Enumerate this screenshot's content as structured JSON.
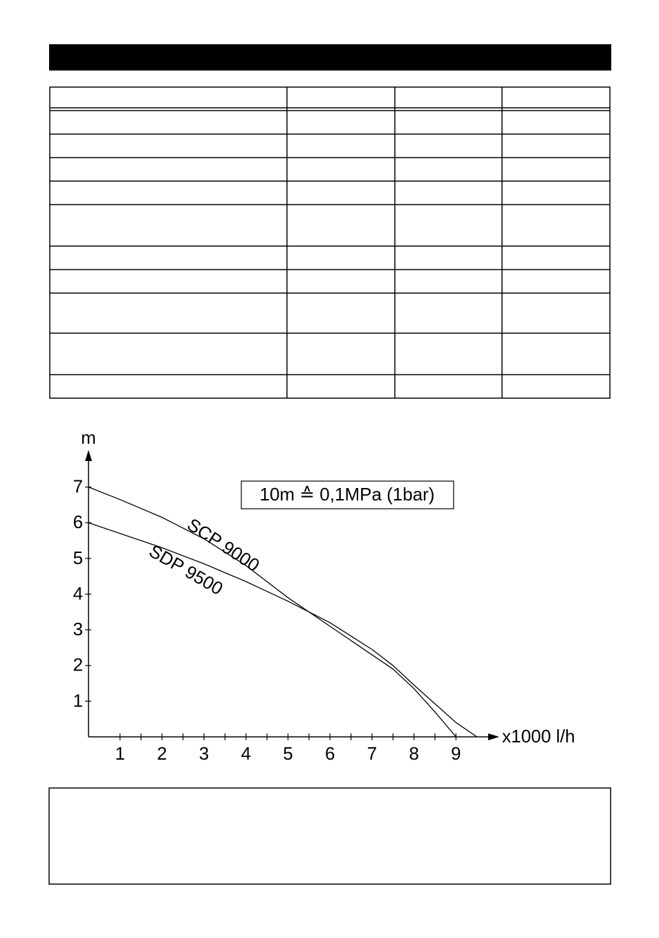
{
  "chart_data": {
    "type": "line",
    "y_label": "m",
    "x_label": "x1000 l/h",
    "annotation": "10m ≙ 0,1MPa (1bar)",
    "xlim": [
      0.25,
      9.8
    ],
    "ylim": [
      0,
      8
    ],
    "xticks": [
      1,
      2,
      3,
      4,
      5,
      6,
      7,
      8,
      9
    ],
    "x_minor_ticks": [
      1.5,
      2.5,
      3.5,
      4.5,
      5.5,
      6.5,
      7.5,
      8.5
    ],
    "yticks": [
      1,
      2,
      3,
      4,
      5,
      6,
      7
    ],
    "grid": false,
    "series": [
      {
        "name": "SCP 9000",
        "color": "#000000",
        "x": [
          0.25,
          1,
          2,
          3,
          4,
          5,
          6,
          7,
          7.5,
          8,
          8.5,
          9
        ],
        "values": [
          7,
          6.65,
          6.15,
          5.55,
          4.8,
          3.9,
          3.1,
          2.3,
          1.9,
          1.35,
          0.7,
          0
        ]
      },
      {
        "name": "SDP 9500",
        "color": "#000000",
        "x": [
          0.25,
          1,
          2,
          3,
          4,
          5,
          6,
          7,
          7.5,
          8,
          9,
          9.5
        ],
        "values": [
          6,
          5.7,
          5.3,
          4.85,
          4.35,
          3.8,
          3.2,
          2.45,
          2.0,
          1.45,
          0.4,
          0
        ]
      }
    ]
  }
}
